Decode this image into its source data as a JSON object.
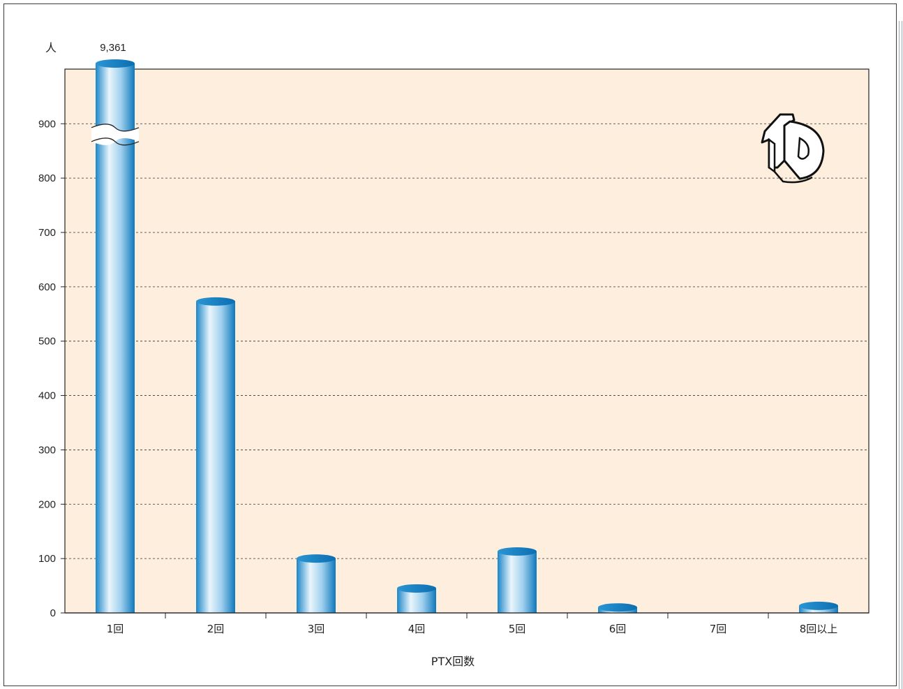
{
  "chart_data": {
    "type": "bar",
    "title": "",
    "ylabel": "人",
    "xlabel": "PTX回数",
    "categories": [
      "1回",
      "2回",
      "3回",
      "4回",
      "5回",
      "6回",
      "7回",
      "8回以上"
    ],
    "values": [
      9361,
      573,
      100,
      45,
      113,
      10,
      0,
      13
    ],
    "ylim": [
      0,
      1000
    ],
    "yticks": [
      0,
      100,
      200,
      300,
      400,
      500,
      600,
      700,
      800,
      900
    ],
    "data_labels": [
      {
        "category": "1回",
        "text": "9,361"
      }
    ],
    "axis_break": {
      "category": "1回",
      "note": "bar truncated above 900 with break marks"
    },
    "grid": true,
    "colors": {
      "plot_bg": "#fdeedd",
      "bar_dark": "#1682c4",
      "bar_light": "#e6f3fb",
      "grid": "#333333"
    }
  },
  "logo": {
    "text": "TD",
    "icon": "td-logo-icon"
  }
}
